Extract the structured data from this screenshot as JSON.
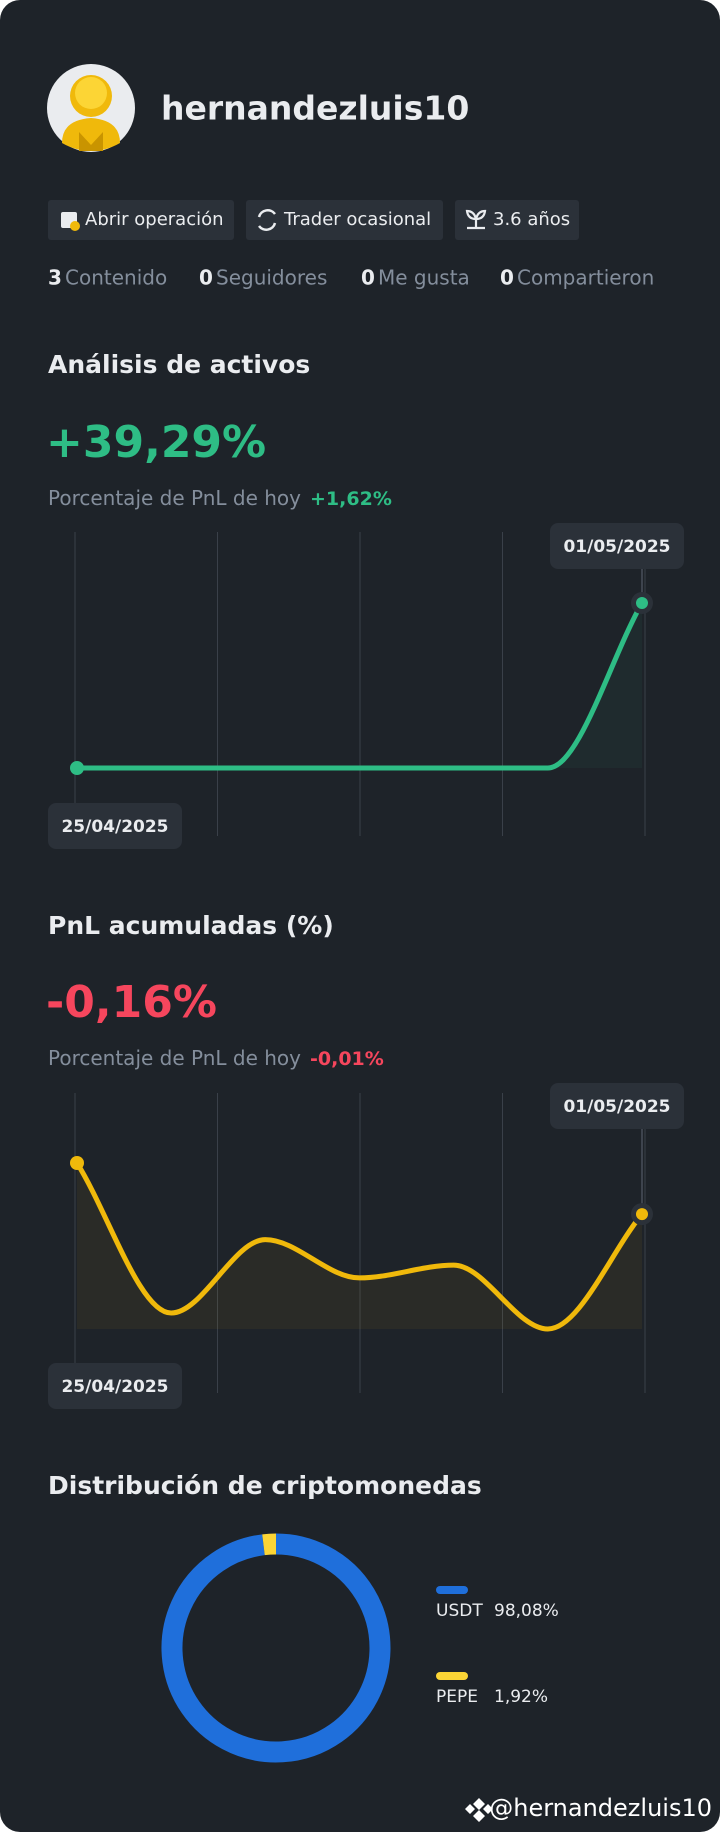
{
  "profile": {
    "username": "hernandezluis10",
    "tags": [
      "Abrir operación",
      "Trader ocasional",
      "3.6 años"
    ],
    "stats": [
      {
        "count": "3",
        "label": "Contenido"
      },
      {
        "count": "0",
        "label": "Seguidores"
      },
      {
        "count": "0",
        "label": "Me gusta"
      },
      {
        "count": "0",
        "label": "Compartieron"
      }
    ]
  },
  "chart_data": [
    {
      "type": "line",
      "title": "Análisis de activos",
      "headline": "+39,29%",
      "subtitle": "Porcentaje de PnL de hoy",
      "change": "+1,62%",
      "x": [
        "25/04/2025",
        null,
        null,
        null,
        null,
        null,
        "01/05/2025"
      ],
      "values": [
        0,
        0,
        0,
        0,
        0,
        0,
        39.29
      ],
      "color": "#2ebd85"
    },
    {
      "type": "line",
      "title": "PnL acumuladas (%)",
      "headline": "-0,16%",
      "subtitle": "Porcentaje de PnL de hoy",
      "change": "-0,01%",
      "x": [
        "25/04/2025",
        null,
        null,
        null,
        null,
        null,
        "01/05/2025"
      ],
      "values": [
        0,
        -0.47,
        -0.24,
        -0.36,
        -0.32,
        -0.52,
        -0.16
      ],
      "color": "#f0b90b"
    },
    {
      "type": "pie",
      "title": "Distribución de criptomonedas",
      "categories": [
        "USDT",
        "PEPE"
      ],
      "values": [
        98.08,
        1.92
      ],
      "value_labels": [
        "98,08%",
        "1,92%"
      ],
      "colors": [
        "#1f6fdb",
        "#fcd535"
      ]
    }
  ],
  "watermark": "@hernandezluis10"
}
